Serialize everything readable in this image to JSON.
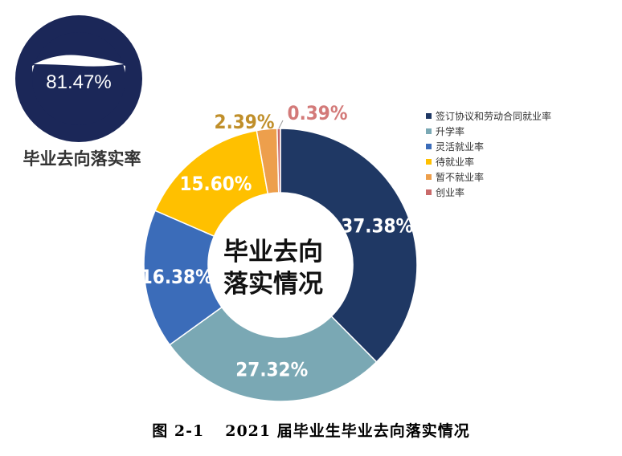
{
  "badge": {
    "value": "81.47%",
    "label": "毕业去向落实率"
  },
  "chart_data": {
    "type": "pie",
    "variant": "donut",
    "center_label_lines": [
      "毕业去向",
      "落实情况"
    ],
    "legend_position": "right",
    "categories": [
      "签订协议和劳动合同就业率",
      "升学率",
      "灵活就业率",
      "待就业率",
      "暂不就业率",
      "创业率"
    ],
    "values": [
      37.38,
      27.32,
      16.38,
      15.6,
      2.39,
      0.39
    ],
    "value_labels": [
      "37.38%",
      "27.32%",
      "16.38%",
      "15.60%",
      "2.39%",
      "0.39%"
    ],
    "colors": [
      "#1f3864",
      "#7aa8b4",
      "#3b6cb9",
      "#ffc000",
      "#ed9f4c",
      "#c96a6a"
    ],
    "outside_label_colors": {
      "4": "#c08f2a",
      "5": "#d37a79"
    }
  },
  "caption": {
    "number": "图 2-1",
    "text": "2021 届毕业生毕业去向落实情况"
  }
}
